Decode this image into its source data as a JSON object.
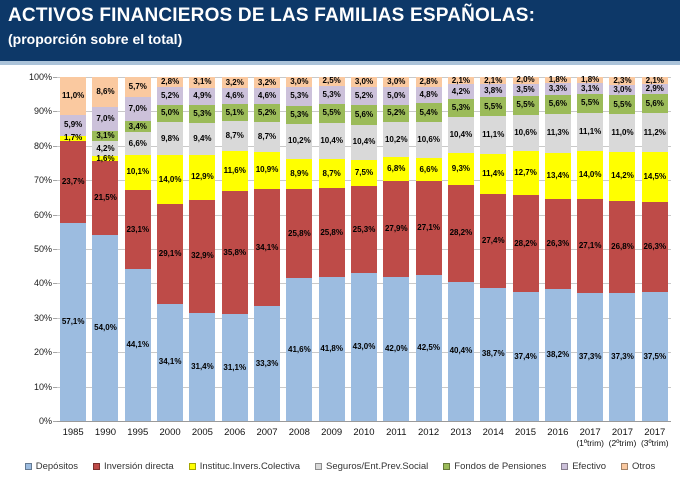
{
  "header": {
    "title": "ACTIVOS FINANCIEROS DE LAS FAMILIAS ESPAÑOLAS:",
    "subtitle": "(proporción sobre el total)"
  },
  "colors": {
    "header_background": "#0D3868",
    "header_strip": "#ABC3D9",
    "gridline": "#C9C9C9"
  },
  "chart_data": {
    "type": "bar",
    "stacked": true,
    "title": "ACTIVOS FINANCIEROS DE LAS FAMILIAS ESPAÑOLAS: (proporción sobre el total)",
    "xlabel": "",
    "ylabel": "",
    "ylim": [
      0,
      100
    ],
    "grid": true,
    "legend_position": "bottom",
    "value_suffix": "%",
    "decimal_separator": ",",
    "y_ticks": [
      "0%",
      "10%",
      "20%",
      "30%",
      "40%",
      "50%",
      "60%",
      "70%",
      "80%",
      "90%",
      "100%"
    ],
    "categories": [
      "1985",
      "1990",
      "1995",
      "2000",
      "2005",
      "2006",
      "2007",
      "2008",
      "2009",
      "2010",
      "2011",
      "2012",
      "2013",
      "2014",
      "2015",
      "2016",
      "2017",
      "2017",
      "2017"
    ],
    "category_sublabels": [
      "",
      "",
      "",
      "",
      "",
      "",
      "",
      "",
      "",
      "",
      "",
      "",
      "",
      "",
      "",
      "",
      "(1ºtrim)",
      "(2ºtrim)",
      "(3ºtrim)"
    ],
    "series": [
      {
        "name": "Depósitos",
        "color": "#9CBCE0",
        "values": [
          57.1,
          54.0,
          44.1,
          34.1,
          31.4,
          31.1,
          33.3,
          41.6,
          41.8,
          43.0,
          42.0,
          42.5,
          40.4,
          38.7,
          37.4,
          38.2,
          37.3,
          37.3,
          37.5
        ]
      },
      {
        "name": "Inversión directa",
        "color": "#BE4B48",
        "values": [
          23.7,
          21.5,
          23.1,
          29.1,
          32.9,
          35.8,
          34.1,
          25.8,
          25.8,
          25.3,
          27.9,
          27.1,
          28.2,
          27.4,
          28.2,
          26.3,
          27.1,
          26.8,
          26.3
        ]
      },
      {
        "name": "Instituc.Invers.Colectiva",
        "color": "#FFFF00",
        "values": [
          1.7,
          1.6,
          10.1,
          14.0,
          12.9,
          11.6,
          10.9,
          8.9,
          8.7,
          7.5,
          6.8,
          6.6,
          9.3,
          11.4,
          12.7,
          13.4,
          14.0,
          14.2,
          14.5
        ]
      },
      {
        "name": "Seguros/Ent.Prev.Social",
        "color": "#D9D9D9",
        "values": [
          0,
          4.2,
          6.6,
          9.8,
          9.4,
          8.7,
          8.7,
          10.2,
          10.4,
          10.4,
          10.2,
          10.6,
          10.4,
          11.1,
          10.6,
          11.3,
          11.1,
          11.0,
          11.2
        ]
      },
      {
        "name": "Fondos de Pensiones",
        "color": "#9BBB59",
        "values": [
          0,
          3.1,
          3.4,
          5.0,
          5.3,
          5.1,
          5.2,
          5.3,
          5.5,
          5.6,
          5.2,
          5.4,
          5.3,
          5.5,
          5.5,
          5.6,
          5.5,
          5.5,
          5.6
        ]
      },
      {
        "name": "Efectivo",
        "color": "#CCC1DA",
        "values": [
          5.9,
          7.0,
          7.0,
          5.2,
          4.9,
          4.6,
          4.6,
          5.3,
          5.3,
          5.2,
          5.0,
          4.8,
          4.2,
          3.8,
          3.5,
          3.3,
          3.1,
          3.0,
          2.9
        ]
      },
      {
        "name": "Otros",
        "color": "#FAC9A0",
        "values": [
          11.0,
          8.6,
          5.7,
          2.8,
          3.1,
          3.2,
          3.2,
          3.0,
          2.5,
          3.0,
          3.0,
          2.8,
          2.1,
          2.1,
          2.0,
          1.8,
          1.8,
          2.3,
          2.1
        ]
      }
    ]
  }
}
